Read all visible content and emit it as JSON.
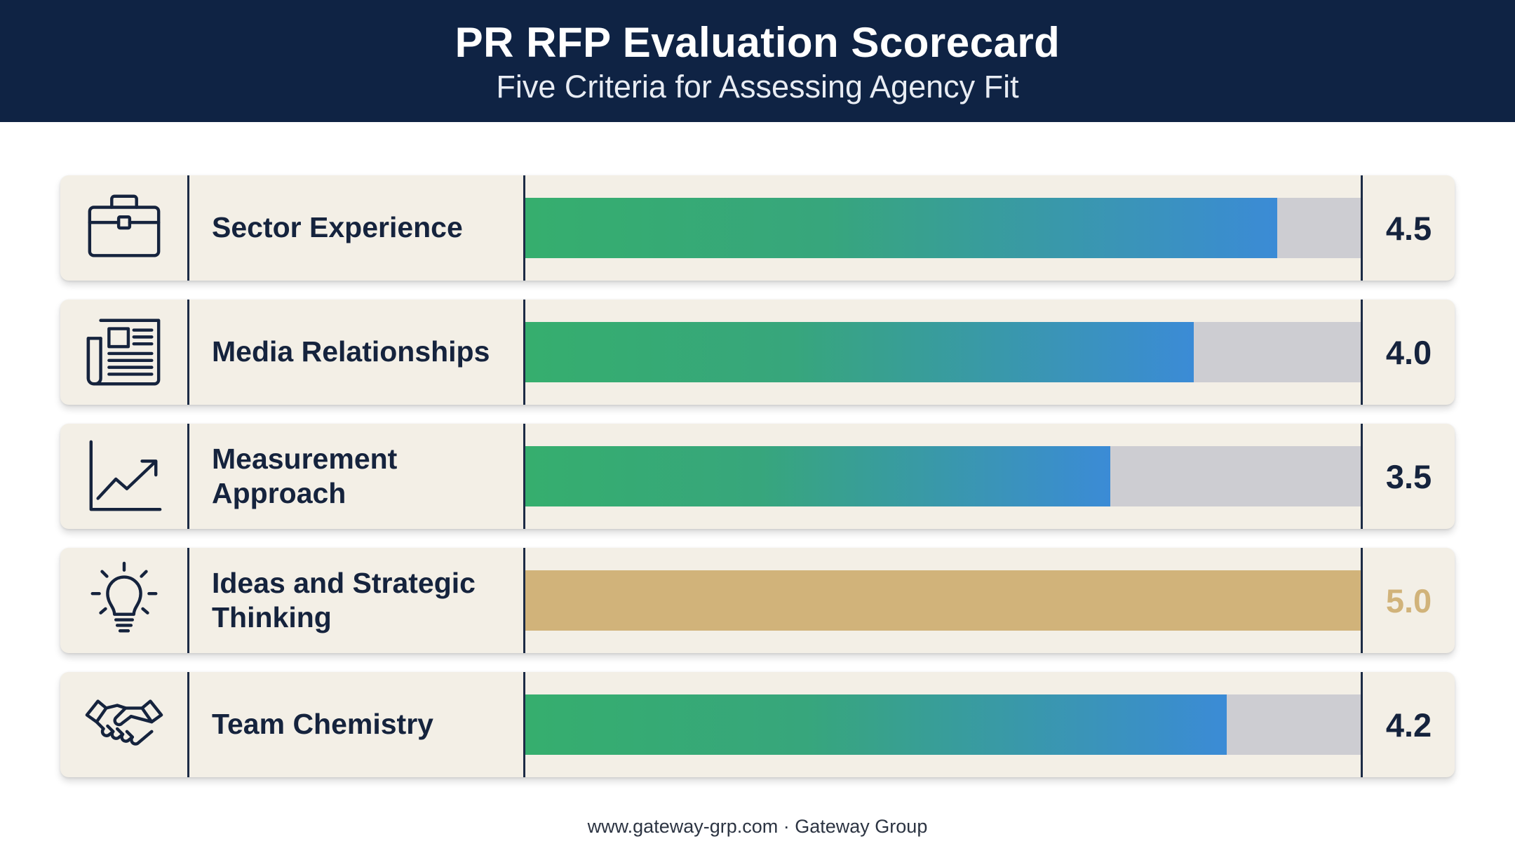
{
  "header": {
    "title": "PR RFP Evaluation Scorecard",
    "subtitle": "Five Criteria for Assessing Agency Fit"
  },
  "chart_data": {
    "type": "bar",
    "orientation": "horizontal",
    "xlim": [
      0,
      5
    ],
    "categories": [
      "Sector Experience",
      "Media Relationships",
      "Measurement Approach",
      "Ideas and Strategic Thinking",
      "Team Chemistry"
    ],
    "values": [
      4.5,
      4.0,
      3.5,
      5.0,
      4.2
    ],
    "value_labels": [
      "4.5",
      "4.0",
      "3.5",
      "5.0",
      "4.2"
    ],
    "icons": [
      "briefcase-icon",
      "newspaper-icon",
      "trend-chart-icon",
      "lightbulb-icon",
      "handshake-icon"
    ],
    "colors": {
      "gradient_start": "#36ae6e",
      "gradient_end": "#3b8bd6",
      "max_score": "#d1b37a",
      "track": "#cdcdd2"
    }
  },
  "footer": {
    "text": "www.gateway-grp.com · Gateway Group"
  }
}
